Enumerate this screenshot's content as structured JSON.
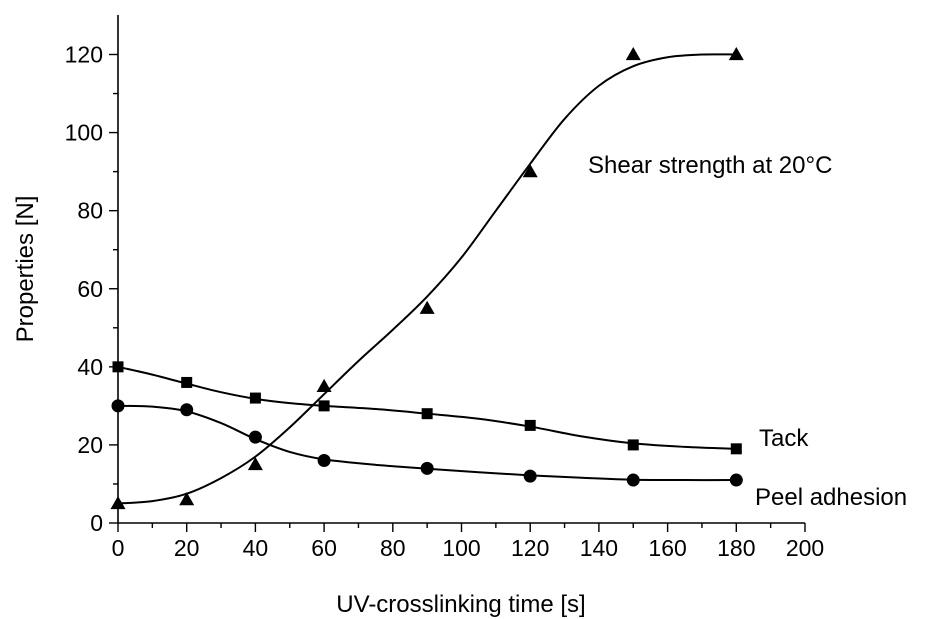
{
  "chart_data": {
    "type": "line",
    "xlabel": "UV-crosslinking time [s]",
    "ylabel": "Properties [N]",
    "xlim": [
      0,
      200
    ],
    "ylim": [
      0,
      125
    ],
    "xticks": [
      0,
      20,
      40,
      60,
      80,
      100,
      120,
      140,
      160,
      180,
      200
    ],
    "yticks": [
      0,
      20,
      40,
      60,
      80,
      100,
      120
    ],
    "grid": false,
    "legend": "none (series labelled directly on plot)",
    "series": [
      {
        "name": "Shear strength at 20°C",
        "marker": "triangle",
        "x": [
          0,
          20,
          40,
          60,
          90,
          120,
          150,
          180
        ],
        "values": [
          5,
          6,
          15,
          35,
          55,
          90,
          120,
          120
        ],
        "fit_x": [
          0,
          10,
          20,
          30,
          40,
          50,
          60,
          70,
          80,
          90,
          100,
          110,
          120,
          130,
          140,
          150,
          160,
          170,
          180
        ],
        "fit_y": [
          5,
          5.6,
          7.5,
          11.5,
          17,
          24.5,
          33,
          41.5,
          49.5,
          58,
          68,
          80,
          92,
          103.5,
          112,
          117,
          119.3,
          120,
          120
        ]
      },
      {
        "name": "Tack",
        "marker": "square",
        "x": [
          0,
          20,
          40,
          60,
          90,
          120,
          150,
          180
        ],
        "values": [
          40,
          36,
          32,
          30,
          28,
          25,
          20,
          19
        ],
        "fit_x": [
          0,
          10,
          20,
          30,
          40,
          50,
          60,
          75,
          90,
          105,
          120,
          135,
          150,
          165,
          180
        ],
        "fit_y": [
          40,
          38,
          35.7,
          33.5,
          31.8,
          30.7,
          30,
          29.2,
          28,
          26.7,
          24.7,
          22.2,
          20.4,
          19.5,
          19
        ]
      },
      {
        "name": "Peel adhesion",
        "marker": "circle",
        "x": [
          0,
          20,
          40,
          60,
          90,
          120,
          150,
          180
        ],
        "values": [
          30,
          29,
          22,
          16,
          14,
          12,
          11,
          11
        ],
        "fit_x": [
          0,
          10,
          20,
          30,
          40,
          50,
          60,
          75,
          90,
          105,
          120,
          135,
          150,
          165,
          180
        ],
        "fit_y": [
          30,
          29.8,
          28.6,
          25.6,
          21.5,
          18.2,
          16.3,
          14.9,
          13.9,
          13,
          12.2,
          11.6,
          11.1,
          11,
          11
        ]
      }
    ]
  }
}
